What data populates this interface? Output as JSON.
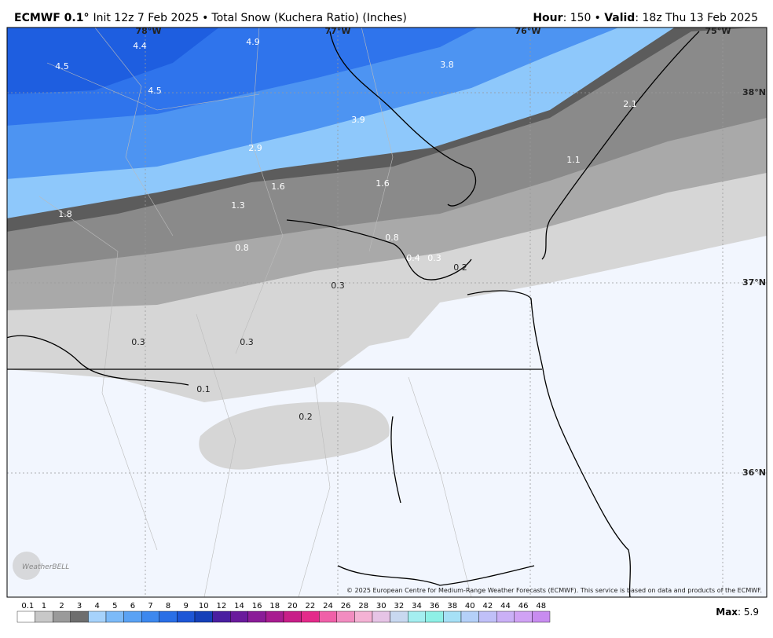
{
  "header": {
    "model": "ECMWF 0.1°",
    "init": "Init 12z 7 Feb 2025",
    "product": "Total Snow (Kuchera Ratio) (Inches)",
    "hour_label": "Hour",
    "hour": "150",
    "valid_label": "Valid",
    "valid": "18z Thu 13 Feb 2025"
  },
  "map": {
    "lon_labels": [
      "78°W",
      "77°W",
      "76°W",
      "75°W"
    ],
    "lat_labels": [
      "38°N",
      "37°N",
      "36°N"
    ],
    "snow_labels": [
      "4.4",
      "4.9",
      "3.8",
      "4.5",
      "4.5",
      "3.9",
      "2.9",
      "2.1",
      "1.1",
      "1.6",
      "1.6",
      "1.3",
      "1.8",
      "0.8",
      "0.8",
      "0.4",
      "0.3",
      "0.2",
      "0.3",
      "0.3",
      "0.3",
      "0.1",
      "0.2"
    ],
    "copyright": "© 2025 European Centre for Medium-Range Weather Forecasts (ECMWF). This service is based on data and products of the ECMWF.",
    "logo": "WeatherBELL"
  },
  "legend": {
    "labels": [
      "0.1",
      "1",
      "2",
      "3",
      "4",
      "5",
      "6",
      "7",
      "8",
      "9",
      "10",
      "12",
      "14",
      "16",
      "18",
      "20",
      "22",
      "24",
      "26",
      "28",
      "30",
      "32",
      "34",
      "36",
      "38",
      "40",
      "42",
      "44",
      "46",
      "48"
    ],
    "max_label": "Max",
    "max": "5.9"
  }
}
